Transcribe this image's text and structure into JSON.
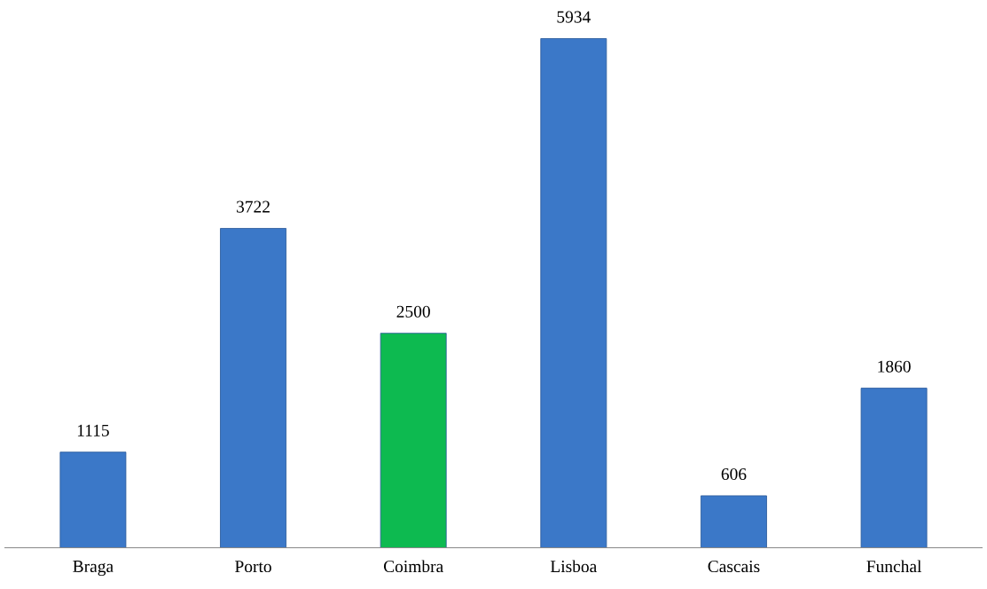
{
  "chart_data": {
    "type": "bar",
    "categories": [
      "Braga",
      "Porto",
      "Coimbra",
      "Lisboa",
      "Cascais",
      "Funchal"
    ],
    "values": [
      1115,
      3722,
      2500,
      5934,
      606,
      1860
    ],
    "colors": [
      "#3b78c8",
      "#3b78c8",
      "#0dba50",
      "#3b78c8",
      "#3b78c8",
      "#3b78c8"
    ],
    "data_labels": true,
    "grid": false,
    "legend": false
  }
}
